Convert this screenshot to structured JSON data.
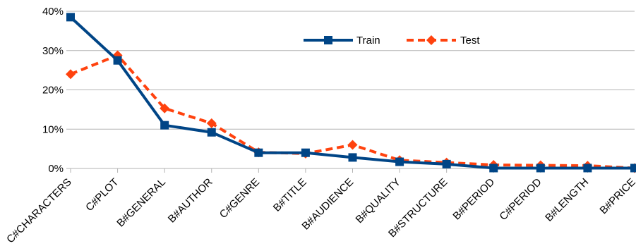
{
  "chart_data": {
    "type": "line",
    "categories": [
      "C#CHARACTERS",
      "C#PLOT",
      "B#GENERAL",
      "B#AUTHOR",
      "C#GENRE",
      "B#TITLE",
      "B#AUDIENCE",
      "B#QUALITY",
      "B#STRUCTURE",
      "B#PERIOD",
      "C#PERIOD",
      "B#LENGTH",
      "B#PRICE"
    ],
    "series": [
      {
        "name": "Train",
        "values": [
          38.5,
          27.5,
          11.0,
          9.2,
          4.0,
          4.0,
          2.8,
          1.7,
          1.1,
          0.1,
          0.1,
          0.1,
          0.1
        ],
        "color": "#004586",
        "marker": "square",
        "line_style": "solid"
      },
      {
        "name": "Test",
        "values": [
          24.0,
          28.8,
          15.3,
          11.5,
          4.1,
          3.8,
          6.0,
          2.1,
          1.5,
          0.9,
          0.8,
          0.7,
          0.1
        ],
        "color": "#ff420e",
        "marker": "diamond",
        "line_style": "dashed"
      }
    ],
    "yticks": [
      "0%",
      "10%",
      "20%",
      "30%",
      "40%"
    ],
    "ylim": [
      0,
      40
    ],
    "grid": "horizontal",
    "legend_position": "top-center"
  }
}
